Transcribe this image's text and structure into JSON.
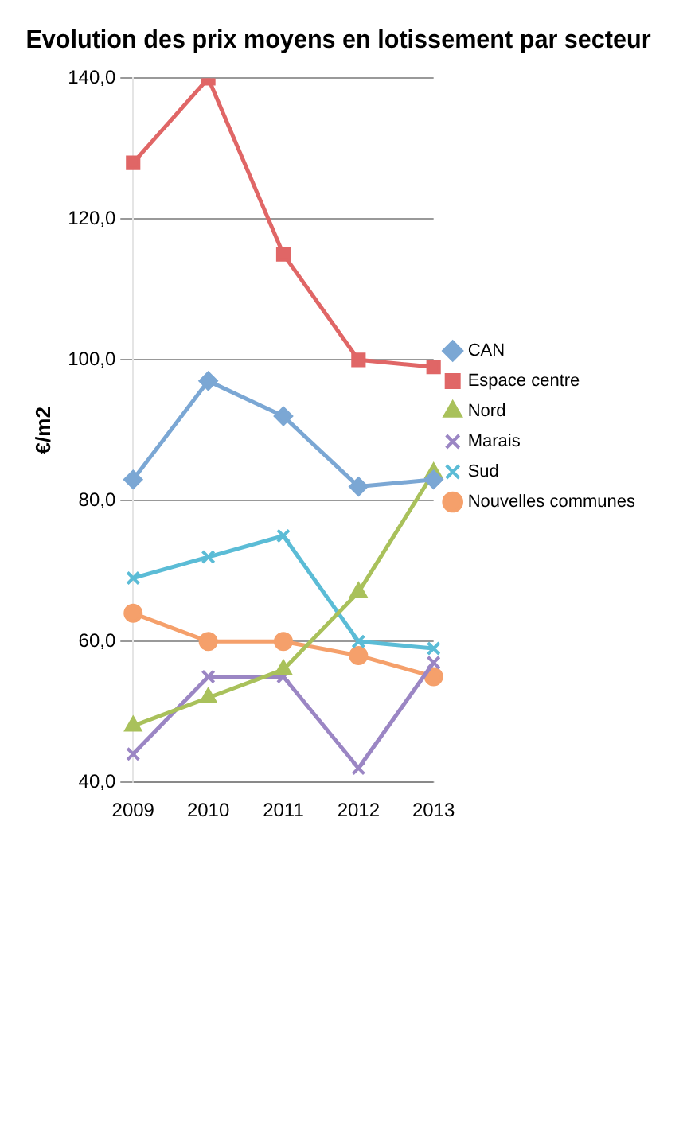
{
  "chart_data": {
    "type": "line",
    "title": "Evolution des prix moyens en lotissement par secteur",
    "ylabel": "€/m2",
    "categories": [
      "2009",
      "2010",
      "2011",
      "2012",
      "2013"
    ],
    "ylim": [
      40,
      140
    ],
    "yticks": [
      {
        "value": 40,
        "label": "40,0"
      },
      {
        "value": 60,
        "label": "60,0"
      },
      {
        "value": 80,
        "label": "80,0"
      },
      {
        "value": 100,
        "label": "100,0"
      },
      {
        "value": 120,
        "label": "120,0"
      },
      {
        "value": 140,
        "label": "140,0"
      }
    ],
    "grid": "y",
    "legend": "right",
    "line_style": "solid",
    "series": [
      {
        "name": "CAN",
        "color": "#7ba7d4",
        "marker": "diamond",
        "values": [
          83,
          97,
          92,
          82,
          83
        ]
      },
      {
        "name": "Espace centre",
        "color": "#e06666",
        "marker": "square",
        "values": [
          128,
          140,
          115,
          100,
          99
        ]
      },
      {
        "name": "Nord",
        "color": "#a9c15b",
        "marker": "triangle",
        "values": [
          48,
          52,
          56,
          67,
          84
        ]
      },
      {
        "name": "Marais",
        "color": "#9b86c4",
        "marker": "cross",
        "values": [
          44,
          55,
          55,
          42,
          57
        ]
      },
      {
        "name": "Sud",
        "color": "#5bbcd6",
        "marker": "cross",
        "values": [
          69,
          72,
          75,
          60,
          59
        ]
      },
      {
        "name": "Nouvelles communes",
        "color": "#f5a06b",
        "marker": "circle",
        "values": [
          64,
          60,
          60,
          58,
          55
        ]
      }
    ]
  }
}
